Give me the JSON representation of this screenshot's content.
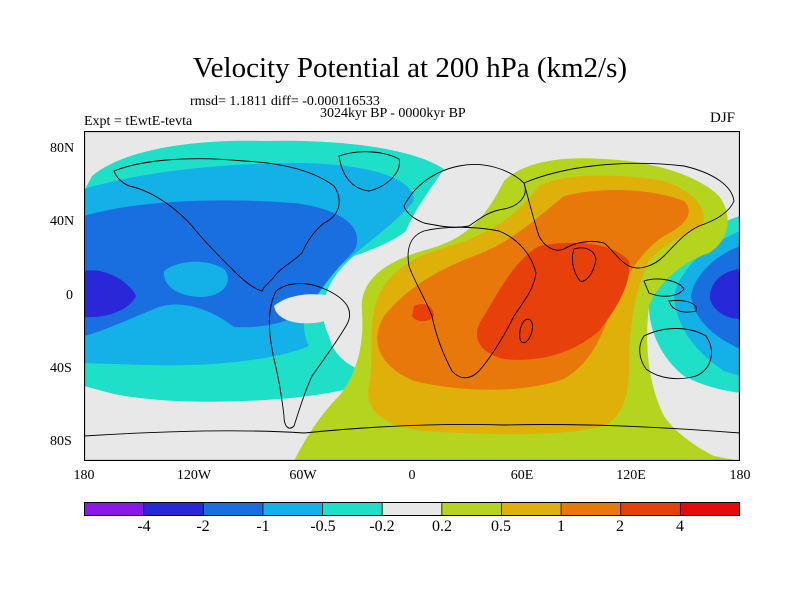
{
  "title": "Velocity Potential at 200 hPa (km2/s)",
  "stats_line": "rmsd= 1.1811 diff= -0.000116533",
  "period_line": "3024kyr BP - 0000kyr BP",
  "experiment_line": "Expt = tEwtE-tevta",
  "season": "DJF",
  "lat_labels": [
    "80N",
    "40N",
    "0",
    "40S",
    "80S"
  ],
  "lon_labels": [
    "180",
    "120W",
    "60W",
    "0",
    "60E",
    "120E",
    "180"
  ],
  "colorbar": {
    "labels": [
      "-4",
      "-2",
      "-1",
      "-0.5",
      "-0.2",
      "0.2",
      "0.5",
      "1",
      "2",
      "4"
    ],
    "colors": [
      "#8a18e6",
      "#2828d8",
      "#1a6fe0",
      "#14b0e8",
      "#1ee0c8",
      "#e8e8e8",
      "#b4d41e",
      "#e0b00a",
      "#e8780a",
      "#e8400a",
      "#e80a0a"
    ]
  }
}
